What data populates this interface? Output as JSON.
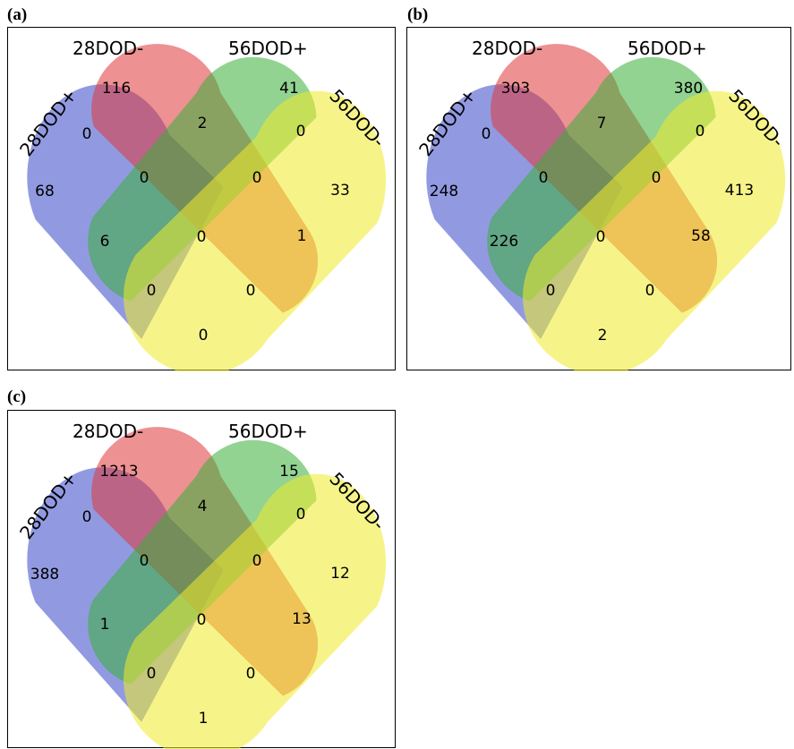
{
  "set_labels": [
    "28DOD+",
    "28DOD-",
    "56DOD+",
    "56DOD-"
  ],
  "colors": {
    "28DOD+": "#3949c9",
    "28DOD-": "#e0383a",
    "56DOD+": "#3ab03a",
    "56DOD-": "#f0ec2a"
  },
  "panels": [
    {
      "label": "(a)",
      "counts": {
        "only_28p": "68",
        "only_28m": "116",
        "only_56p": "41",
        "only_56m": "33",
        "28p_28m": "0",
        "28m_56p": "2",
        "56p_56m": "0",
        "28p_56p": "6",
        "28m_56m": "1",
        "28p_56m": "0",
        "28p_28m_56p": "0",
        "28m_56p_56m": "0",
        "28p_28m_56m": "0",
        "28p_56p_56m": "0",
        "all": "0"
      }
    },
    {
      "label": "(b)",
      "counts": {
        "only_28p": "248",
        "only_28m": "303",
        "only_56p": "380",
        "only_56m": "413",
        "28p_28m": "0",
        "28m_56p": "7",
        "56p_56m": "0",
        "28p_56p": "226",
        "28m_56m": "58",
        "28p_56m": "2",
        "28p_28m_56p": "0",
        "28m_56p_56m": "0",
        "28p_28m_56m": "0",
        "28p_56p_56m": "0",
        "all": "0"
      }
    },
    {
      "label": "(c)",
      "counts": {
        "only_28p": "388",
        "only_28m": "1213",
        "only_56p": "15",
        "only_56m": "12",
        "28p_28m": "0",
        "28m_56p": "4",
        "56p_56m": "0",
        "28p_56p": "1",
        "28m_56m": "13",
        "28p_56m": "1",
        "28p_28m_56p": "0",
        "28m_56p_56m": "0",
        "28p_28m_56m": "0",
        "28p_56p_56m": "0",
        "all": "0"
      }
    }
  ]
}
